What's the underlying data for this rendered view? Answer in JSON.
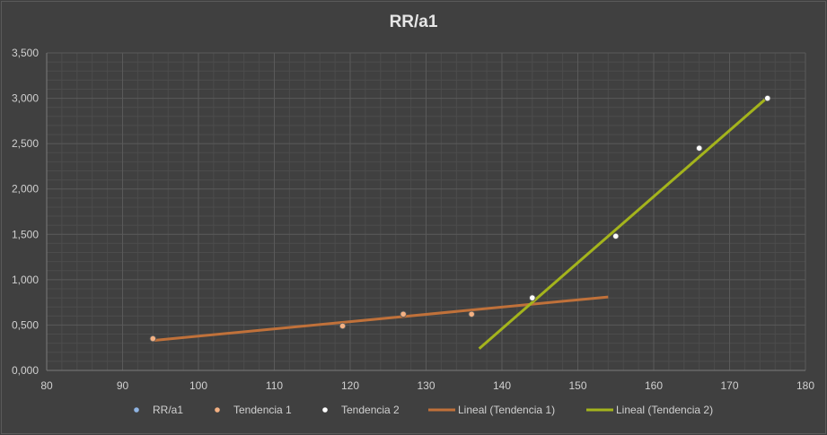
{
  "chart_data": {
    "type": "scatter",
    "title": "RR/a1",
    "xlim": [
      80,
      180
    ],
    "ylim": [
      0,
      3.5
    ],
    "x_ticks": [
      "80",
      "90",
      "100",
      "110",
      "120",
      "130",
      "140",
      "150",
      "160",
      "170",
      "180"
    ],
    "y_ticks": [
      "0,000",
      "0,500",
      "1,000",
      "1,500",
      "2,000",
      "2,500",
      "3,000",
      "3,500"
    ],
    "grid": true,
    "legend_position": "bottom",
    "series": [
      {
        "name": "RR/a1",
        "kind": "points",
        "color": "#8fb4e3",
        "x": [
          94,
          119,
          127,
          136,
          144,
          155,
          166,
          175
        ],
        "y": [
          0.35,
          0.49,
          0.62,
          0.62,
          0.8,
          1.48,
          2.45,
          3.0
        ]
      },
      {
        "name": "Tendencia 1",
        "kind": "points",
        "color": "#f4b183",
        "x": [
          94,
          119,
          127,
          136,
          144
        ],
        "y": [
          0.35,
          0.49,
          0.62,
          0.62,
          0.8
        ]
      },
      {
        "name": "Tendencia 2",
        "kind": "points",
        "color": "#ffffff",
        "x": [
          144,
          155,
          166,
          175
        ],
        "y": [
          0.8,
          1.48,
          2.45,
          3.0
        ]
      },
      {
        "name": "Lineal (Tendencia 1)",
        "kind": "line",
        "color": "#c0713a",
        "x": [
          94,
          154
        ],
        "y": [
          0.33,
          0.81
        ]
      },
      {
        "name": "Lineal (Tendencia 2)",
        "kind": "line",
        "color": "#a4b41c",
        "x": [
          137,
          175
        ],
        "y": [
          0.24,
          3.01
        ]
      }
    ]
  }
}
